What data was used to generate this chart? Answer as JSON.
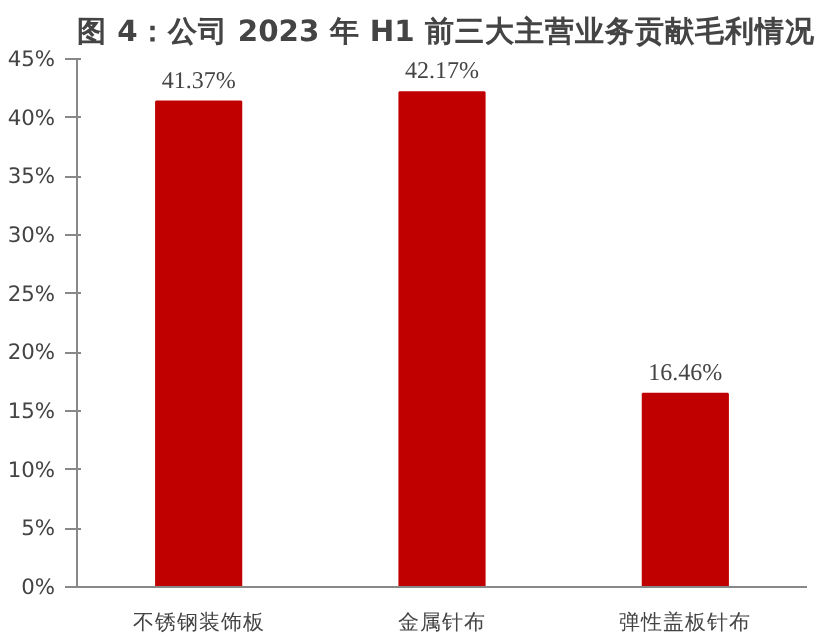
{
  "chart_data": {
    "type": "bar",
    "title": "图 4：公司 2023 年 H1 前三大主营业务贡献毛利情况",
    "categories": [
      "不锈钢装饰板",
      "金属针布",
      "弹性盖板针布"
    ],
    "values": [
      41.37,
      42.17,
      16.46
    ],
    "value_labels": [
      "41.37%",
      "42.17%",
      "16.46%"
    ],
    "color": "#c00000",
    "ylim": [
      0,
      45
    ],
    "yticks": [
      {
        "value": 0,
        "label": "0%"
      },
      {
        "value": 5,
        "label": "5%"
      },
      {
        "value": 10,
        "label": "10%"
      },
      {
        "value": 15,
        "label": "15%"
      },
      {
        "value": 20,
        "label": "20%"
      },
      {
        "value": 25,
        "label": "25%"
      },
      {
        "value": 30,
        "label": "30%"
      },
      {
        "value": 35,
        "label": "35%"
      },
      {
        "value": 40,
        "label": "40%"
      },
      {
        "value": 45,
        "label": "45%"
      }
    ],
    "grid": false
  }
}
